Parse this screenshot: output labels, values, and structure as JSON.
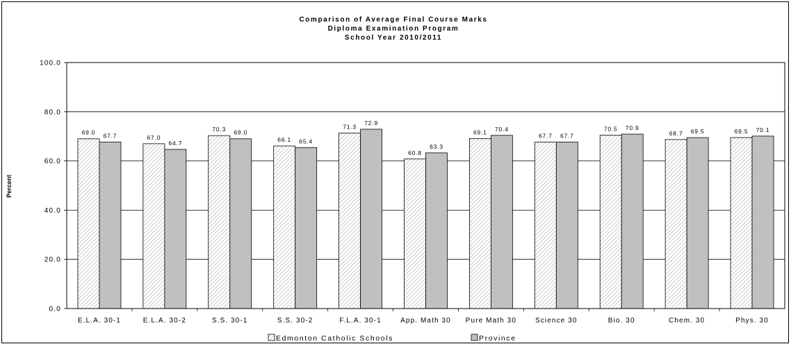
{
  "chart_data": {
    "type": "bar",
    "title_lines": [
      "Comparison of Average Final Course Marks",
      "Diploma Examination Program",
      "School Year 2010/2011"
    ],
    "ylabel": "Percent",
    "xlabel": "",
    "ylim": [
      0,
      100
    ],
    "y_ticks": [
      "0.0",
      "20.0",
      "40.0",
      "60.0",
      "80.0",
      "100.0"
    ],
    "grid": true,
    "legend_position": "bottom-center",
    "categories": [
      "E.L.A. 30-1",
      "E.L.A. 30-2",
      "S.S. 30-1",
      "S.S. 30-2",
      "F.L.A. 30-1",
      "App. Math 30",
      "Pure Math 30",
      "Science 30",
      "Bio. 30",
      "Chem. 30",
      "Phys. 30"
    ],
    "series": [
      {
        "name": "Edmonton Catholic Schools",
        "values": [
          69.0,
          67.0,
          70.3,
          66.1,
          71.3,
          60.8,
          69.1,
          67.7,
          70.5,
          68.7,
          69.5
        ],
        "labels": [
          "69.0",
          "67.0",
          "70.3",
          "66.1",
          "71.3",
          "60.8",
          "69.1",
          "67.7",
          "70.5",
          "68.7",
          "69.5"
        ],
        "fill": "hatch"
      },
      {
        "name": "Province",
        "values": [
          67.7,
          64.7,
          69.0,
          65.4,
          72.9,
          63.3,
          70.4,
          67.7,
          70.9,
          69.5,
          70.1
        ],
        "labels": [
          "67.7",
          "64.7",
          "69.0",
          "65.4",
          "72.9",
          "63.3",
          "70.4",
          "67.7",
          "70.9",
          "69.5",
          "70.1"
        ],
        "color": "#c0c0c0"
      }
    ]
  }
}
